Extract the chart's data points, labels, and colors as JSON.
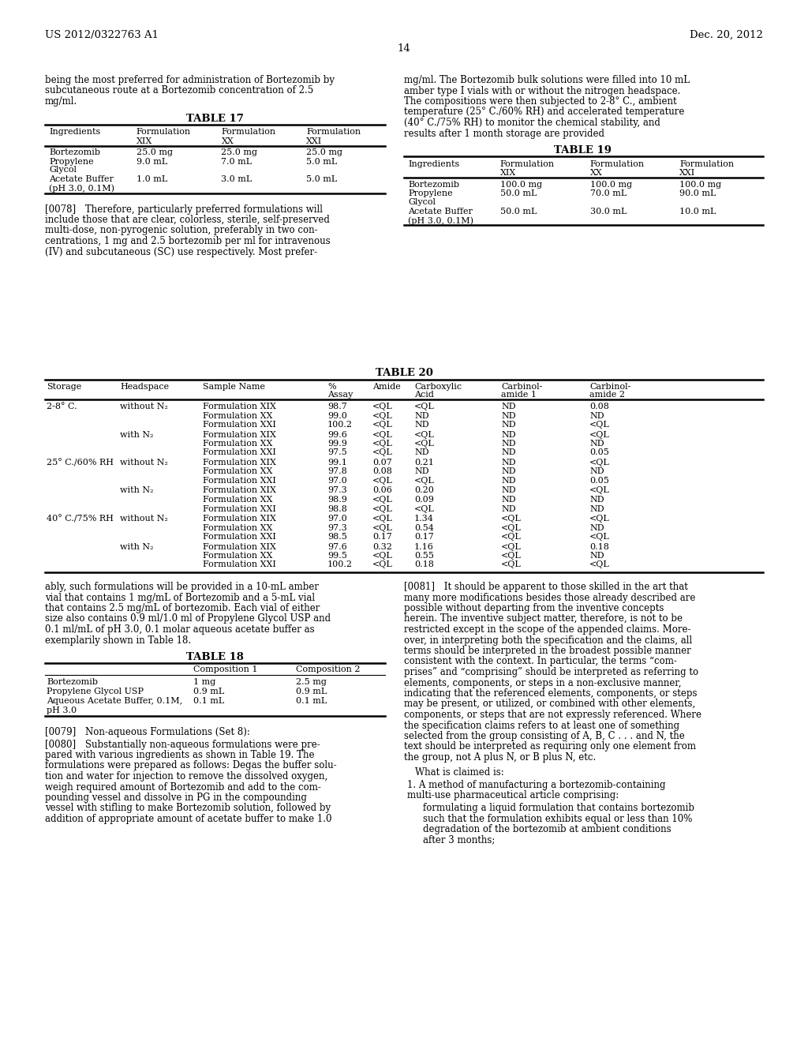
{
  "page_header_left": "US 2012/0322763 A1",
  "page_header_right": "Dec. 20, 2012",
  "page_number": "14",
  "bg_color": "#ffffff",
  "left_col_para1_lines": [
    "being the most preferred for administration of Bortezomib by",
    "subcutaneous route at a Bortezomib concentration of 2.5",
    "mg/ml."
  ],
  "table17_title": "TABLE 17",
  "table17_header": [
    "Ingredients",
    "Formulation\nXIX",
    "Formulation\nXX",
    "Formulation\nXXI"
  ],
  "table17_row1_col0": [
    "Bortezomib",
    "Propylene",
    "Glycol"
  ],
  "table17_row1_cols": [
    [
      "25.0 mg",
      "9.0 mL"
    ],
    [
      "25.0 mg",
      "7.0 mL"
    ],
    [
      "25.0 mg",
      "5.0 mL"
    ]
  ],
  "table17_row2_col0": [
    "Acetate Buffer",
    "(pH 3.0, 0.1M)"
  ],
  "table17_row2_cols": [
    [
      "1.0 mL"
    ],
    [
      "3.0 mL"
    ],
    [
      "5.0 mL"
    ]
  ],
  "left_col_para2_lines": [
    "[0078] Therefore, particularly preferred formulations will",
    "include those that are clear, colorless, sterile, self-preserved",
    "multi-dose, non-pyrogenic solution, preferably in two con-",
    "centrations, 1 mg and 2.5 bortezomib per ml for intravenous",
    "(IV) and subcutaneous (SC) use respectively. Most prefer-"
  ],
  "right_col_para1_lines": [
    "mg/ml. The Bortezomib bulk solutions were filled into 10 mL",
    "amber type I vials with or without the nitrogen headspace.",
    "The compositions were then subjected to 2-8° C., ambient",
    "temperature (25° C./60% RH) and accelerated temperature",
    "(40° C./75% RH) to monitor the chemical stability, and",
    "results after 1 month storage are provided"
  ],
  "table19_title": "TABLE 19",
  "table19_header": [
    "Ingredients",
    "Formulation\nXIX",
    "Formulation\nXX",
    "Formulation\nXXI"
  ],
  "table19_row1_col0": [
    "Bortezomib",
    "Propylene",
    "Glycol"
  ],
  "table19_row1_cols": [
    [
      "100.0 mg",
      "50.0 mL"
    ],
    [
      "100.0 mg",
      "70.0 mL"
    ],
    [
      "100.0 mg",
      "90.0 mL"
    ]
  ],
  "table19_row2_col0": [
    "Acetate Buffer",
    "(pH 3.0, 0.1M)"
  ],
  "table19_row2_cols": [
    [
      "50.0 mL"
    ],
    [
      "30.0 mL"
    ],
    [
      "10.0 mL"
    ]
  ],
  "table20_title": "TABLE 20",
  "table20_headers": [
    "Storage",
    "Headspace",
    "Sample Name",
    "%\nAssay",
    "Amide",
    "Carboxylic\nAcid",
    "Carbinol-\namide 1",
    "Carbinol-\namide 2"
  ],
  "table20_data": [
    [
      "2-8° C.",
      "without N₂",
      [
        "Formulation XIX",
        "Formulation XX",
        "Formulation XXI"
      ],
      [
        "98.7",
        "99.0",
        "100.2"
      ],
      [
        "<QL",
        "<QL",
        "<QL"
      ],
      [
        "<QL",
        "ND",
        "ND"
      ],
      [
        "ND",
        "ND",
        "ND"
      ],
      [
        "0.08",
        "ND",
        "<QL"
      ]
    ],
    [
      "",
      "with N₂",
      [
        "Formulation XIX",
        "Formulation XX",
        "Formulation XXI"
      ],
      [
        "99.6",
        "99.9",
        "97.5"
      ],
      [
        "<QL",
        "<QL",
        "<QL"
      ],
      [
        "<QL",
        "<QL",
        "ND"
      ],
      [
        "ND",
        "ND",
        "ND"
      ],
      [
        "<QL",
        "ND",
        "0.05"
      ]
    ],
    [
      "25° C./60% RH",
      "without N₂",
      [
        "Formulation XIX",
        "Formulation XX",
        "Formulation XXI"
      ],
      [
        "99.1",
        "97.8",
        "97.0"
      ],
      [
        "0.07",
        "0.08",
        "<QL"
      ],
      [
        "0.21",
        "ND",
        "<QL"
      ],
      [
        "ND",
        "ND",
        "ND"
      ],
      [
        "<QL",
        "ND",
        "0.05"
      ]
    ],
    [
      "",
      "with N₂",
      [
        "Formulation XIX",
        "Formulation XX",
        "Formulation XXI"
      ],
      [
        "97.3",
        "98.9",
        "98.8"
      ],
      [
        "0.06",
        "<QL",
        "<QL"
      ],
      [
        "0.20",
        "0.09",
        "<QL"
      ],
      [
        "ND",
        "ND",
        "ND"
      ],
      [
        "<QL",
        "ND",
        "ND"
      ]
    ],
    [
      "40° C./75% RH",
      "without N₂",
      [
        "Formulation XIX",
        "Formulation XX",
        "Formulation XXI"
      ],
      [
        "97.0",
        "97.3",
        "98.5"
      ],
      [
        "<QL",
        "<QL",
        "0.17"
      ],
      [
        "1.34",
        "0.54",
        "0.17"
      ],
      [
        "<QL",
        "<QL",
        "<QL"
      ],
      [
        "<QL",
        "ND",
        "<QL"
      ]
    ],
    [
      "",
      "with N₂",
      [
        "Formulation XIX",
        "Formulation XX",
        "Formulation XXI"
      ],
      [
        "97.6",
        "99.5",
        "100.2"
      ],
      [
        "0.32",
        "<QL",
        "<QL"
      ],
      [
        "1.16",
        "0.55",
        "0.18"
      ],
      [
        "<QL",
        "<QL",
        "<QL"
      ],
      [
        "0.18",
        "ND",
        "<QL"
      ]
    ]
  ],
  "left_lower_para_lines": [
    "ably, such formulations will be provided in a 10-mL amber",
    "vial that contains 1 mg/mL of Bortezomib and a 5-mL vial",
    "that contains 2.5 mg/mL of bortezomib. Each vial of either",
    "size also contains 0.9 ml/1.0 ml of Propylene Glycol USP and",
    "0.1 ml/mL of pH 3.0, 0.1 molar aqueous acetate buffer as",
    "exemplarily shown in Table 18."
  ],
  "table18_title": "TABLE 18",
  "table18_col1": "Composition 1",
  "table18_col2": "Composition 2",
  "table18_rows": [
    [
      "Bortezomib",
      "1 mg",
      "2.5 mg"
    ],
    [
      "Propylene Glycol USP",
      "0.9 mL",
      "0.9 mL"
    ],
    [
      "Aqueous Acetate Buffer, 0.1M,",
      "0.1 mL",
      "0.1 mL"
    ],
    [
      "pH 3.0",
      "",
      ""
    ]
  ],
  "left_lower_para4": "[0079] Non-aqueous Formulations (Set 8):",
  "left_lower_para5_lines": [
    "[0080] Substantially non-aqueous formulations were pre-",
    "pared with various ingredients as shown in Table 19. The",
    "formulations were prepared as follows: Degas the buffer solu-",
    "tion and water for injection to remove the dissolved oxygen,",
    "weigh required amount of Bortezomib and add to the com-",
    "pounding vessel and dissolve in PG in the compounding",
    "vessel with stifling to make Bortezomib solution, followed by",
    "addition of appropriate amount of acetate buffer to make 1.0"
  ],
  "right_lower_para_lines": [
    "[0081] It should be apparent to those skilled in the art that",
    "many more modifications besides those already described are",
    "possible without departing from the inventive concepts",
    "herein. The inventive subject matter, therefore, is not to be",
    "restricted except in the scope of the appended claims. More-",
    "over, in interpreting both the specification and the claims, all",
    "terms should be interpreted in the broadest possible manner",
    "consistent with the context. In particular, the terms “com-",
    "prises” and “comprising” should be interpreted as referring to",
    "elements, components, or steps in a non-exclusive manner,",
    "indicating that the referenced elements, components, or steps",
    "may be present, or utilized, or combined with other elements,",
    "components, or steps that are not expressly referenced. Where",
    "the specification claims refers to at least one of something",
    "selected from the group consisting of A, B, C . . . and N, the",
    "text should be interpreted as requiring only one element from",
    "the group, not A plus N, or B plus N, etc."
  ],
  "right_lower_para_what": "What is claimed is:",
  "right_lower_para_claim1a": "1. A method of manufacturing a bortezomib-containing",
  "right_lower_para_claim1b": "multi-use pharmaceutical article comprising:",
  "right_lower_para_claim1c_lines": [
    "formulating a liquid formulation that contains bortezomib",
    "such that the formulation exhibits equal or less than 10%",
    "degradation of the bortezomib at ambient conditions",
    "after 3 months;"
  ]
}
